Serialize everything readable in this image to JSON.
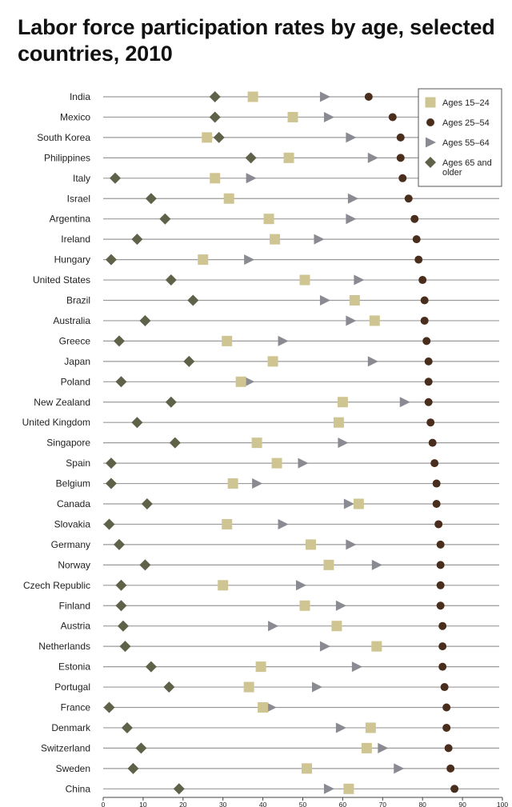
{
  "chart_data": {
    "type": "scatter",
    "title": "Labor force participation rates by age, selected countries, 2010",
    "xlim": [
      0,
      100
    ],
    "xticks": [
      0,
      10,
      20,
      30,
      40,
      50,
      60,
      70,
      80,
      90,
      100
    ],
    "grid": "horizontal row lines",
    "legend_position": "top-right",
    "countries": [
      "India",
      "Mexico",
      "South Korea",
      "Philippines",
      "Italy",
      "Israel",
      "Argentina",
      "Ireland",
      "Hungary",
      "United States",
      "Brazil",
      "Australia",
      "Greece",
      "Japan",
      "Poland",
      "New Zealand",
      "United Kingdom",
      "Singapore",
      "Spain",
      "Belgium",
      "Canada",
      "Slovakia",
      "Germany",
      "Norway",
      "Czech Republic",
      "Finland",
      "Austria",
      "Netherlands",
      "Estonia",
      "Portugal",
      "France",
      "Denmark",
      "Switzerland",
      "Sweden",
      "China"
    ],
    "series": [
      {
        "name": "Ages 15–24",
        "marker": "square",
        "color": "#cfc592",
        "values": [
          37.5,
          47.5,
          26,
          46.5,
          28,
          31.5,
          41.5,
          43,
          25,
          50.5,
          63,
          68,
          31,
          42.5,
          34.5,
          60,
          59,
          38.5,
          43.5,
          32.5,
          64,
          31,
          52,
          56.5,
          30,
          50.5,
          58.5,
          68.5,
          39.5,
          36.5,
          40,
          67,
          66,
          51,
          61.5
        ]
      },
      {
        "name": "Ages 25–54",
        "marker": "circle",
        "color": "#4a2e1d",
        "values": [
          66.5,
          72.5,
          74.5,
          74.5,
          75,
          76.5,
          78,
          78.5,
          79,
          80,
          80.5,
          80.5,
          81,
          81.5,
          81.5,
          81.5,
          82,
          82.5,
          83,
          83.5,
          83.5,
          84,
          84.5,
          84.5,
          84.5,
          84.5,
          85,
          85,
          85,
          85.5,
          86,
          86,
          86.5,
          87,
          88
        ]
      },
      {
        "name": "Ages 55–64",
        "marker": "triangle",
        "color": "#8a8a92",
        "values": [
          55.5,
          56.5,
          62,
          67.5,
          37,
          62.5,
          62,
          54,
          36.5,
          64,
          55.5,
          62,
          45,
          67.5,
          36.5,
          75.5,
          59,
          60,
          50,
          38.5,
          61.5,
          45,
          62,
          68.5,
          49.5,
          59.5,
          42.5,
          55.5,
          63.5,
          53.5,
          42,
          59.5,
          70,
          74,
          56.5
        ]
      },
      {
        "name": "Ages 65 and older",
        "marker": "diamond",
        "color": "#5f6249",
        "values": [
          28,
          28,
          29,
          37,
          3,
          12,
          15.5,
          8.5,
          2,
          17,
          22.5,
          10.5,
          4,
          21.5,
          4.5,
          17,
          8.5,
          18,
          2,
          2,
          11,
          1.5,
          4,
          10.5,
          4.5,
          4.5,
          5,
          5.5,
          12,
          16.5,
          1.5,
          6,
          9.5,
          7.5,
          19
        ]
      }
    ]
  }
}
